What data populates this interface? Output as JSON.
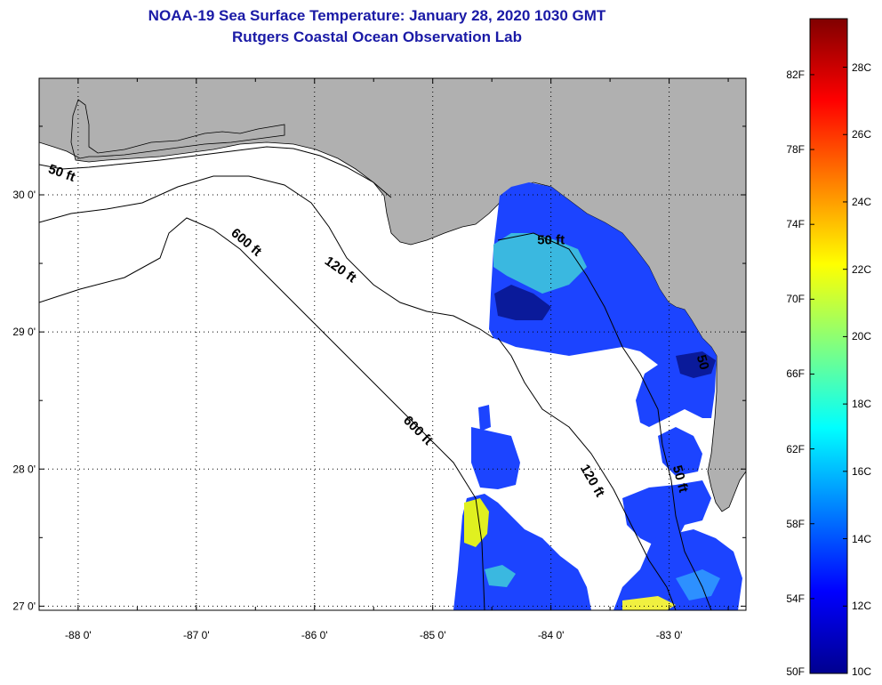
{
  "header": {
    "title": "NOAA-19 Sea Surface Temperature:  January 28, 2020 1030 GMT",
    "subtitle": "Rutgers Coastal Ocean Observation Lab"
  },
  "map": {
    "lon_range": [
      -88.33,
      -82.35
    ],
    "lat_range": [
      26.97,
      30.85
    ],
    "x_ticks": [
      {
        "value": -88,
        "label": "-88 0'"
      },
      {
        "value": -87,
        "label": "-87 0'"
      },
      {
        "value": -86,
        "label": "-86 0'"
      },
      {
        "value": -85,
        "label": "-85 0'"
      },
      {
        "value": -84,
        "label": "-84 0'"
      },
      {
        "value": -83,
        "label": "-83 0'"
      }
    ],
    "y_ticks": [
      {
        "value": 30,
        "label": "30 0'"
      },
      {
        "value": 29,
        "label": "29 0'"
      },
      {
        "value": 28,
        "label": "28 0'"
      },
      {
        "value": 27,
        "label": "27 0'"
      }
    ],
    "contour_labels": [
      {
        "text": "50 ft",
        "lon": -88.15,
        "lat": 30.13,
        "angle": 20
      },
      {
        "text": "600 ft",
        "lon": -86.6,
        "lat": 29.63,
        "angle": 40
      },
      {
        "text": "120 ft",
        "lon": -85.8,
        "lat": 29.43,
        "angle": 35
      },
      {
        "text": "50 ft",
        "lon": -84.0,
        "lat": 29.64,
        "angle": 0
      },
      {
        "text": "600 ft",
        "lon": -85.15,
        "lat": 28.26,
        "angle": 45
      },
      {
        "text": "120 ft",
        "lon": -83.68,
        "lat": 27.9,
        "angle": 60
      },
      {
        "text": "50 ft",
        "lon": -82.94,
        "lat": 27.92,
        "angle": 75
      },
      {
        "text": "50",
        "lon": -82.75,
        "lat": 28.77,
        "angle": 75
      }
    ],
    "colors": {
      "land": "#b0b0b0",
      "ocean": "#ffffff",
      "outline": "#000000"
    }
  },
  "colorbar": {
    "f_labels": [
      {
        "label": "82F",
        "value": 82
      },
      {
        "label": "78F",
        "value": 78
      },
      {
        "label": "74F",
        "value": 74
      },
      {
        "label": "70F",
        "value": 70
      },
      {
        "label": "66F",
        "value": 66
      },
      {
        "label": "62F",
        "value": 62
      },
      {
        "label": "58F",
        "value": 58
      },
      {
        "label": "54F",
        "value": 54
      },
      {
        "label": "50F",
        "value": 50
      }
    ],
    "c_labels": [
      {
        "label": "28C",
        "value": 28
      },
      {
        "label": "26C",
        "value": 26
      },
      {
        "label": "24C",
        "value": 24
      },
      {
        "label": "22C",
        "value": 22
      },
      {
        "label": "20C",
        "value": 20
      },
      {
        "label": "18C",
        "value": 18
      },
      {
        "label": "16C",
        "value": 16
      },
      {
        "label": "14C",
        "value": 14
      },
      {
        "label": "12C",
        "value": 12
      },
      {
        "label": "10C",
        "value": 10
      }
    ],
    "c_range": [
      10,
      29.44
    ],
    "stops": [
      "#00008f",
      "#0000ff",
      "#0080ff",
      "#00ffff",
      "#80ff80",
      "#ffff00",
      "#ff8000",
      "#ff0000",
      "#800000"
    ]
  }
}
